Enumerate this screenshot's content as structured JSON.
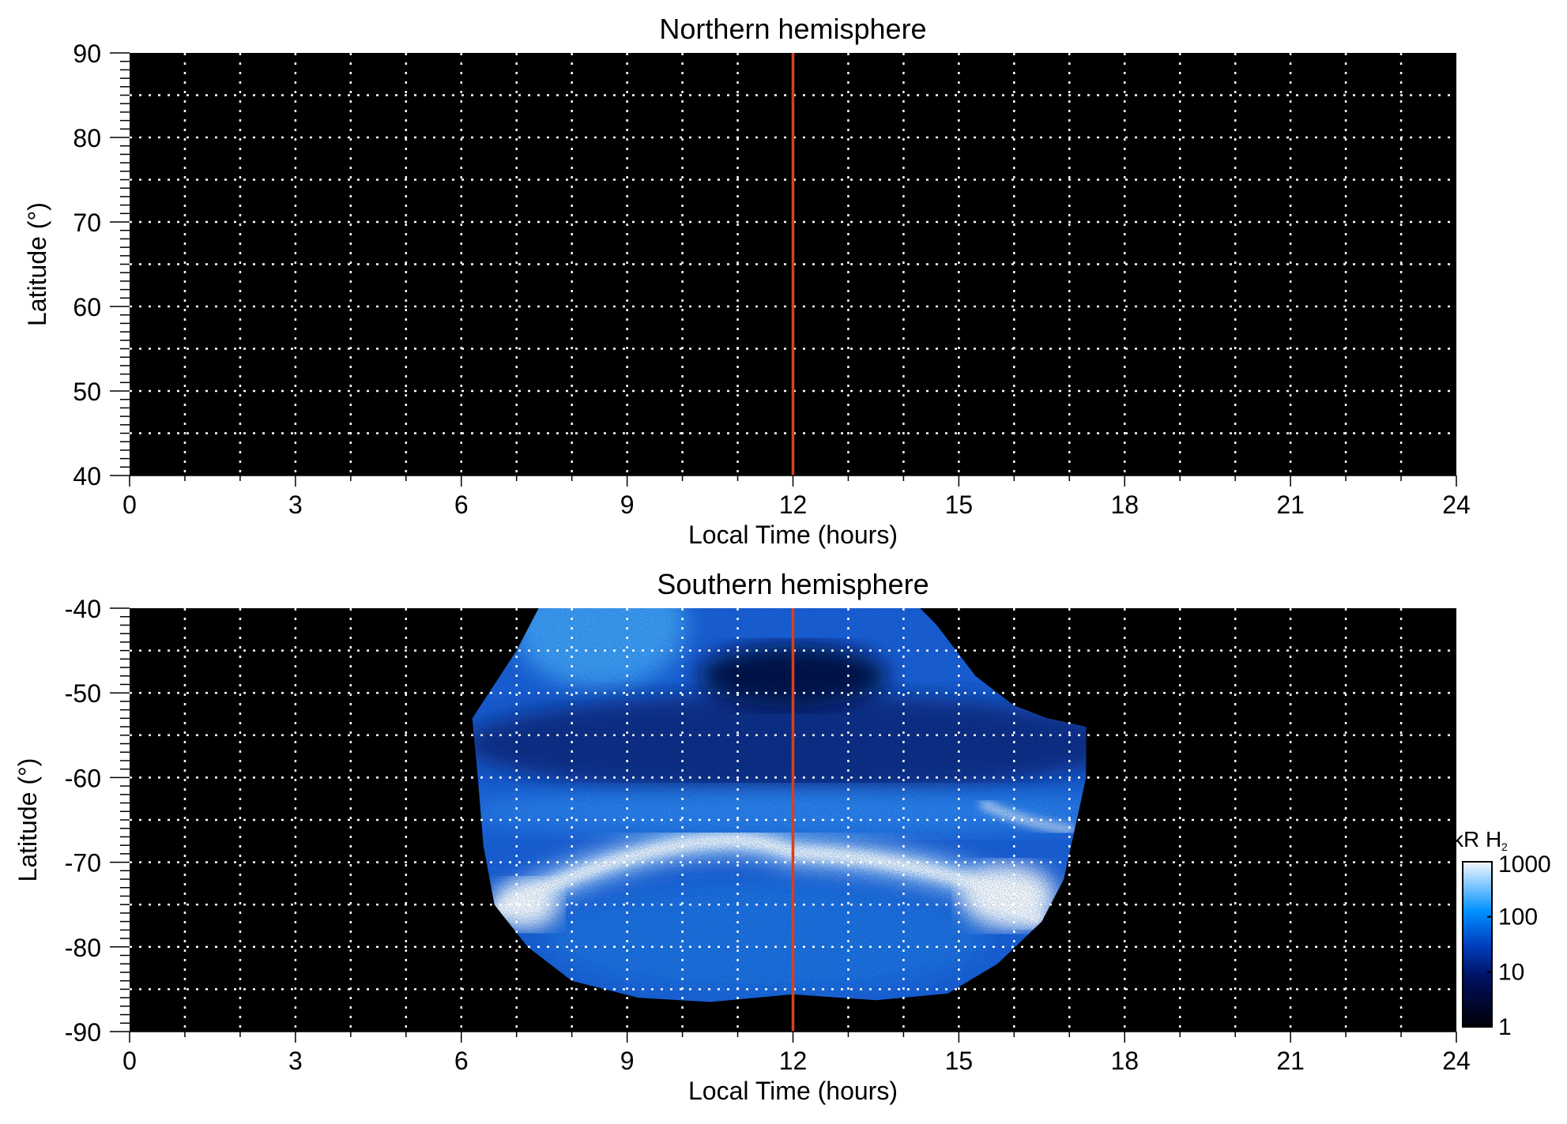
{
  "chart_data": [
    {
      "type": "heatmap",
      "title": "Northern hemisphere",
      "xlabel": "Local Time (hours)",
      "ylabel": "Latitude (°)",
      "xlim": [
        0,
        24
      ],
      "ylim": [
        40,
        90
      ],
      "xticks": [
        "0",
        "3",
        "6",
        "9",
        "12",
        "15",
        "18",
        "21",
        "24"
      ],
      "yticks": [
        "90",
        "80",
        "70",
        "60",
        "50",
        "40"
      ],
      "grid": true,
      "grid_x_step": 1,
      "grid_y_step": 5,
      "marker_line_x": 12,
      "emission": "none"
    },
    {
      "type": "heatmap",
      "title": "Southern hemisphere",
      "xlabel": "Local Time (hours)",
      "ylabel": "Latitude (°)",
      "xlim": [
        0,
        24
      ],
      "ylim": [
        -90,
        -40
      ],
      "xticks": [
        "0",
        "3",
        "6",
        "9",
        "12",
        "15",
        "18",
        "21",
        "24"
      ],
      "yticks": [
        "-40",
        "-50",
        "-60",
        "-70",
        "-80",
        "-90"
      ],
      "grid": true,
      "grid_x_step": 1,
      "grid_y_step": 5,
      "marker_line_x": 12,
      "coverage_lt_range": [
        6.3,
        17.3
      ],
      "main_oval_latitude": -69,
      "colorbar": {
        "label": "kR H",
        "label_sub": "2",
        "scale": "log",
        "range": [
          1,
          1000
        ],
        "ticks": [
          "1000",
          "100",
          "10",
          "1"
        ]
      }
    }
  ],
  "colors": {
    "marker_line": "#d8401c",
    "background": "#000000",
    "grid": "#ffffff"
  }
}
